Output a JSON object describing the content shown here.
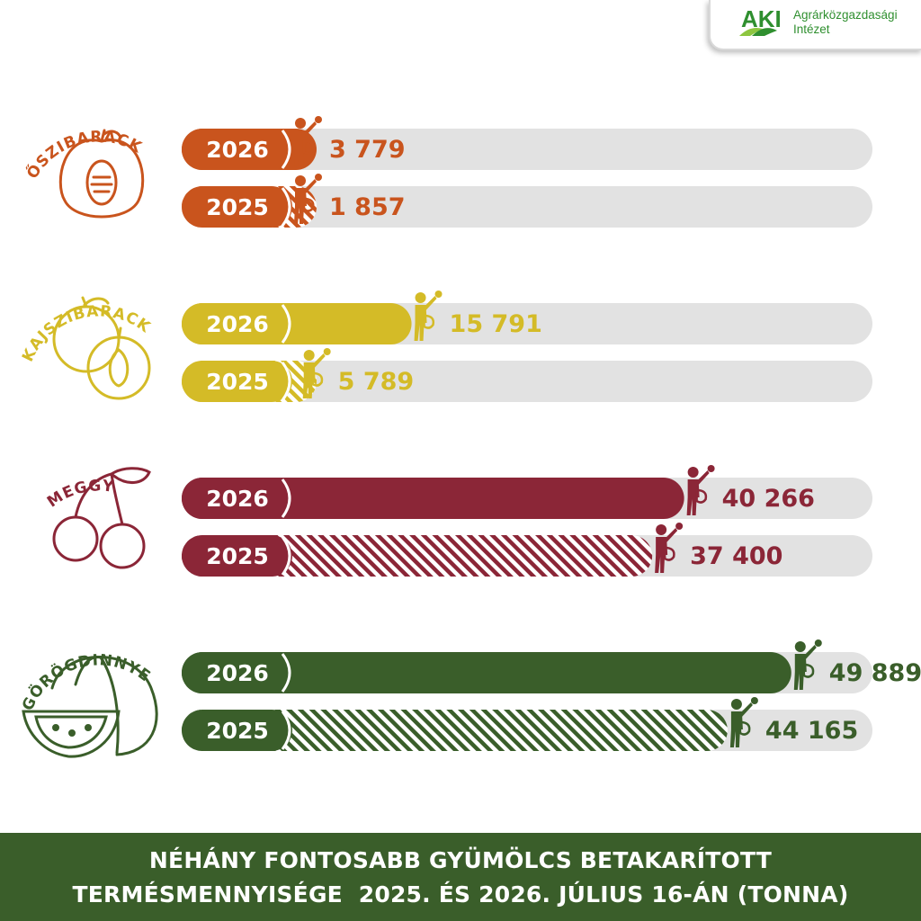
{
  "logo": {
    "mark": "AKI",
    "line1": "Agrárközgazdasági",
    "line2": "Intézet",
    "colors": {
      "green": "#2f8f2f",
      "lime": "#8dc63f"
    }
  },
  "chart_data": {
    "type": "bar",
    "orientation": "horizontal",
    "xlim": [
      0,
      60000
    ],
    "unit": "tonna",
    "groups": [
      {
        "name": "ŐSZIBARACK",
        "icon": "peach-icon",
        "color": "#c9541d",
        "rows": [
          {
            "year": "2026",
            "value": 3779,
            "label": "3 779",
            "hatched": false
          },
          {
            "year": "2025",
            "value": 1857,
            "label": "1 857",
            "hatched": true
          }
        ]
      },
      {
        "name": "KAJSZIBARACK",
        "icon": "apricot-icon",
        "color": "#d4bb27",
        "rows": [
          {
            "year": "2026",
            "value": 15791,
            "label": "15 791",
            "hatched": false
          },
          {
            "year": "2025",
            "value": 5789,
            "label": "5 789",
            "hatched": true
          }
        ]
      },
      {
        "name": "MEGGY",
        "icon": "cherry-icon",
        "color": "#8b2637",
        "rows": [
          {
            "year": "2026",
            "value": 40266,
            "label": "40 266",
            "hatched": false
          },
          {
            "year": "2025",
            "value": 37400,
            "label": "37 400",
            "hatched": true
          }
        ]
      },
      {
        "name": "GÖRÖGDINNYE",
        "icon": "watermelon-icon",
        "color": "#3a5e2a",
        "rows": [
          {
            "year": "2026",
            "value": 49889,
            "label": "49 889",
            "hatched": false
          },
          {
            "year": "2025",
            "value": 44165,
            "label": "44 165",
            "hatched": true
          }
        ]
      }
    ],
    "track_color": "#e2e2e2"
  },
  "footer": {
    "line1": "NÉHÁNY FONTOSABB GYÜMÖLCS BETAKARÍTOTT",
    "line2": "TERMÉSMENNYISÉGE  2025. ÉS 2026. JÚLIUS 16-ÁN (TONNA)"
  }
}
